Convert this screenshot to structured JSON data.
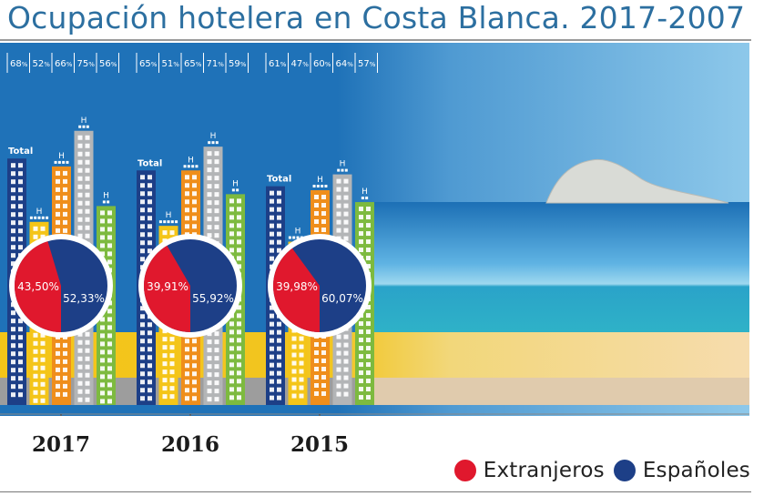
{
  "title": "Ocupación hotelera en Costa Blanca. 2017-2007",
  "chart_data": {
    "type": "bar",
    "title": "Ocupación hotelera en Costa Blanca. 2017-2007",
    "total_label": "Total",
    "category_marker": "H",
    "pct_suffix": "%",
    "groups": [
      {
        "year": "2017",
        "bars": [
          {
            "value": 68,
            "label": "68",
            "stars": 0
          },
          {
            "value": 52,
            "label": "52",
            "stars": 5
          },
          {
            "value": 66,
            "label": "66",
            "stars": 4
          },
          {
            "value": 75,
            "label": "75",
            "stars": 3
          },
          {
            "value": 56,
            "label": "56",
            "stars": 2
          }
        ],
        "pie": [
          {
            "name": "Extranjeros",
            "value": 43.5,
            "label": "43,50%"
          },
          {
            "name": "Españoles",
            "value": 52.33,
            "label": "52,33%"
          }
        ]
      },
      {
        "year": "2016",
        "bars": [
          {
            "value": 65,
            "label": "65",
            "stars": 0
          },
          {
            "value": 51,
            "label": "51",
            "stars": 5
          },
          {
            "value": 65,
            "label": "65",
            "stars": 4
          },
          {
            "value": 71,
            "label": "71",
            "stars": 3
          },
          {
            "value": 59,
            "label": "59",
            "stars": 2
          }
        ],
        "pie": [
          {
            "name": "Extranjeros",
            "value": 39.91,
            "label": "39,91%"
          },
          {
            "name": "Españoles",
            "value": 55.92,
            "label": "55,92%"
          }
        ]
      },
      {
        "year": "2015",
        "bars": [
          {
            "value": 61,
            "label": "61",
            "stars": 0
          },
          {
            "value": 47,
            "label": "47",
            "stars": 5
          },
          {
            "value": 60,
            "label": "60",
            "stars": 4
          },
          {
            "value": 64,
            "label": "64",
            "stars": 3
          },
          {
            "value": 57,
            "label": "57",
            "stars": 2
          }
        ],
        "pie": [
          {
            "name": "Extranjeros",
            "value": 39.98,
            "label": "39,98%"
          },
          {
            "name": "Españoles",
            "value": 60.07,
            "label": "60,07%"
          }
        ]
      }
    ],
    "legend": [
      {
        "name": "Extranjeros",
        "color": "#e0182d"
      },
      {
        "name": "Españoles",
        "color": "#1d3f87"
      }
    ]
  },
  "colors": {
    "sky": "#1f72b8",
    "sand": "#f4c518",
    "ground": "#9d9d9d",
    "bars": [
      "#1d3f87",
      "#f4c518",
      "#ef8e1b",
      "#b3b5b7",
      "#7dba3f"
    ],
    "pie_red": "#e0182d",
    "pie_blue": "#1d3f87"
  }
}
